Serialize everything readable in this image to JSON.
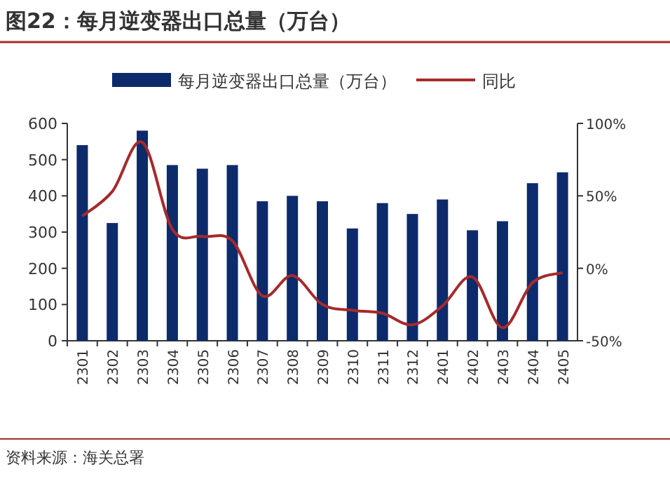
{
  "chart_data": {
    "type": "bar",
    "title": "图22：每月逆变器出口总量（万台）",
    "categories": [
      "2301",
      "2302",
      "2303",
      "2304",
      "2305",
      "2306",
      "2307",
      "2308",
      "2309",
      "2310",
      "2311",
      "2312",
      "2401",
      "2402",
      "2403",
      "2404",
      "2405"
    ],
    "series": [
      {
        "name": "每月逆变器出口总量（万台）",
        "color": "#0d2a6b",
        "values": [
          540,
          325,
          580,
          485,
          475,
          485,
          385,
          400,
          385,
          310,
          380,
          350,
          390,
          305,
          330,
          435,
          465
        ]
      },
      {
        "name": "同比",
        "type": "line",
        "axis": "y2",
        "color": "#a52a2a",
        "values": [
          36,
          53,
          87,
          27,
          22,
          19,
          -19,
          -5,
          -25,
          -29,
          -31,
          -39,
          -26,
          -6,
          -41,
          -10,
          -3
        ]
      }
    ],
    "ylim": [
      0,
      600
    ],
    "yticks": [
      0,
      100,
      200,
      300,
      400,
      500,
      600
    ],
    "y2lim": [
      -50,
      100
    ],
    "y2ticks": [
      {
        "value": -50,
        "label": "-50%"
      },
      {
        "value": 0,
        "label": "0%"
      },
      {
        "value": 50,
        "label": "50%"
      },
      {
        "value": 100,
        "label": "100%"
      }
    ],
    "legend": "top",
    "grid": false,
    "annotations": [
      "资料来源：海关总署"
    ]
  }
}
